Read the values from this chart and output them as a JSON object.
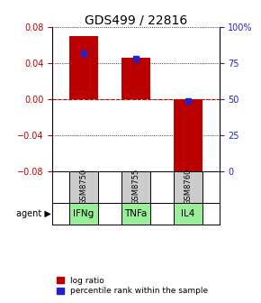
{
  "title": "GDS499 / 22816",
  "categories": [
    "GSM8750",
    "GSM8755",
    "GSM8760"
  ],
  "agents": [
    "IFNg",
    "TNFa",
    "IL4"
  ],
  "log_ratios": [
    0.07,
    0.046,
    -0.083
  ],
  "percentile_ranks": [
    82,
    78,
    49
  ],
  "ylim_left": [
    -0.08,
    0.08
  ],
  "ylim_right": [
    0,
    100
  ],
  "yticks_left": [
    -0.08,
    -0.04,
    0,
    0.04,
    0.08
  ],
  "yticks_right": [
    0,
    25,
    50,
    75,
    100
  ],
  "bar_color_red": "#bb0000",
  "bar_color_blue": "#2222cc",
  "bar_width": 0.55,
  "zero_line_color": "#cc0000",
  "agent_bg_color": "#99ee99",
  "sample_bg_color": "#cccccc",
  "title_fontsize": 10,
  "tick_fontsize": 7,
  "legend_fontsize": 6.5
}
